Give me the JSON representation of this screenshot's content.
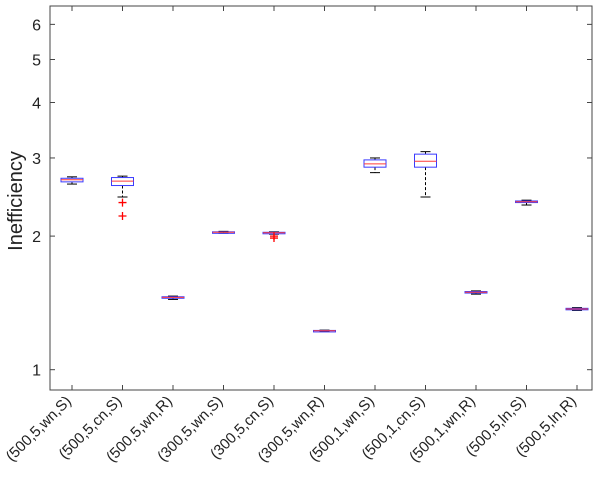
{
  "chart_data": {
    "type": "box",
    "ylabel": "Inefficiency",
    "yscale": "log",
    "ylim": [
      0.9,
      6.6
    ],
    "yticks": [
      1,
      2,
      3,
      4,
      5,
      6
    ],
    "grid": false,
    "categories": [
      "(500,5,wn,S)",
      "(500,5,cn,S)",
      "(500,5,wn,R)",
      "(300,5,wn,S)",
      "(300,5,cn,S)",
      "(300,5,wn,R)",
      "(500,1,wn,S)",
      "(500,1,cn,S)",
      "(500,1,wn,R)",
      "(500,5,ln,S)",
      "(500,5,ln,R)"
    ],
    "boxes": [
      {
        "whisker_low": 2.62,
        "q1": 2.65,
        "median": 2.68,
        "q3": 2.7,
        "whisker_high": 2.72,
        "outliers": []
      },
      {
        "whisker_low": 2.45,
        "q1": 2.6,
        "median": 2.66,
        "q3": 2.71,
        "whisker_high": 2.73,
        "outliers": [
          2.38,
          2.22
        ]
      },
      {
        "whisker_low": 1.44,
        "q1": 1.45,
        "median": 1.455,
        "q3": 1.46,
        "whisker_high": 1.465,
        "outliers": []
      },
      {
        "whisker_low": 2.03,
        "q1": 2.035,
        "median": 2.04,
        "q3": 2.045,
        "whisker_high": 2.05,
        "outliers": []
      },
      {
        "whisker_low": 2.02,
        "q1": 2.03,
        "median": 2.035,
        "q3": 2.04,
        "whisker_high": 2.045,
        "outliers": [
          2.0,
          1.98
        ]
      },
      {
        "whisker_low": 1.22,
        "q1": 1.222,
        "median": 1.224,
        "q3": 1.226,
        "whisker_high": 1.228,
        "outliers": []
      },
      {
        "whisker_low": 2.78,
        "q1": 2.86,
        "median": 2.91,
        "q3": 2.97,
        "whisker_high": 3.0,
        "outliers": []
      },
      {
        "whisker_low": 2.45,
        "q1": 2.86,
        "median": 2.95,
        "q3": 3.06,
        "whisker_high": 3.1,
        "outliers": []
      },
      {
        "whisker_low": 1.48,
        "q1": 1.49,
        "median": 1.495,
        "q3": 1.5,
        "whisker_high": 1.505,
        "outliers": []
      },
      {
        "whisker_low": 2.35,
        "q1": 2.38,
        "median": 2.39,
        "q3": 2.4,
        "whisker_high": 2.41,
        "outliers": []
      },
      {
        "whisker_low": 1.36,
        "q1": 1.365,
        "median": 1.37,
        "q3": 1.375,
        "whisker_high": 1.38,
        "outliers": []
      }
    ],
    "colors": {
      "box": "#3a3aff",
      "median": "#ff3a3a",
      "whisker": "#000000",
      "outlier": "#ff0000",
      "axis": "#444444"
    }
  }
}
